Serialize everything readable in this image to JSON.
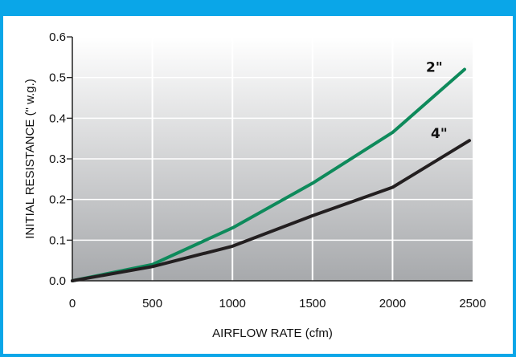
{
  "chart_data": {
    "type": "line",
    "xlabel": "AIRFLOW RATE (cfm)",
    "ylabel": "INITIAL RESISTANCE (\" w.g.)",
    "xlim": [
      0,
      2500
    ],
    "ylim": [
      0,
      0.6
    ],
    "x_ticks": [
      "0",
      "500",
      "1000",
      "1500",
      "2000",
      "2500"
    ],
    "y_ticks": [
      "0.0",
      "0.1",
      "0.2",
      "0.3",
      "0.4",
      "0.5",
      "0.6"
    ],
    "grid": true,
    "series": [
      {
        "name": "2\"",
        "color": "#0e8a5b",
        "x": [
          0,
          500,
          1000,
          1500,
          2000,
          2450
        ],
        "y": [
          0,
          0.04,
          0.13,
          0.24,
          0.365,
          0.52
        ]
      },
      {
        "name": "4\"",
        "color": "#231f20",
        "x": [
          0,
          500,
          1000,
          1500,
          2000,
          2480
        ],
        "y": [
          0,
          0.035,
          0.085,
          0.16,
          0.23,
          0.345
        ]
      }
    ]
  }
}
